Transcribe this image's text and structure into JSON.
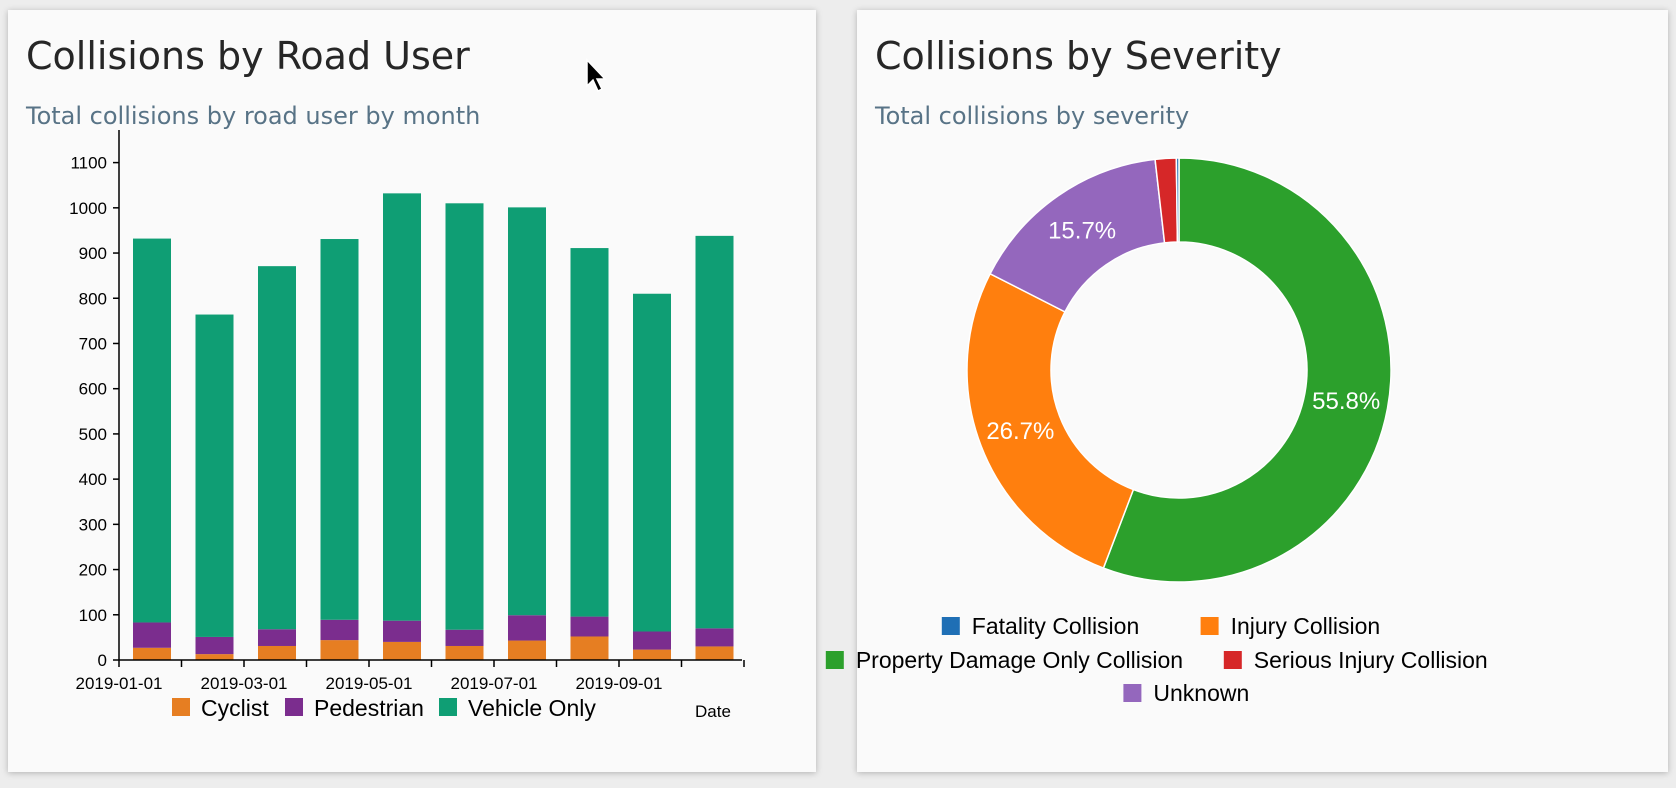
{
  "road_user_card": {
    "title": "Collisions by Road User",
    "subtitle": "Total collisions by road user by month"
  },
  "severity_card": {
    "title": "Collisions by Severity",
    "subtitle": "Total collisions by severity"
  },
  "chart_data": [
    {
      "type": "bar",
      "stacked": true,
      "xlabel": "Date",
      "ylabel": "",
      "ylim": [
        0,
        1150
      ],
      "yticks": [
        0,
        100,
        200,
        300,
        400,
        500,
        600,
        700,
        800,
        900,
        1000,
        1100
      ],
      "categories": [
        "2019-01",
        "2019-02",
        "2019-03",
        "2019-04",
        "2019-05",
        "2019-06",
        "2019-07",
        "2019-08",
        "2019-09",
        "2019-10"
      ],
      "x_tick_labels": [
        "2019-01-01",
        "2019-03-01",
        "2019-05-01",
        "2019-07-01",
        "2019-09-01"
      ],
      "series": [
        {
          "name": "Cyclist",
          "color": "#e67e22",
          "values": [
            27,
            13,
            31,
            44,
            40,
            31,
            43,
            52,
            23,
            30
          ]
        },
        {
          "name": "Pedestrian",
          "color": "#7b2d8e",
          "values": [
            56,
            38,
            37,
            45,
            47,
            36,
            56,
            44,
            40,
            40
          ]
        },
        {
          "name": "Vehicle Only",
          "color": "#0f9e74",
          "values": [
            849,
            713,
            803,
            842,
            945,
            943,
            902,
            815,
            747,
            868
          ]
        }
      ],
      "legend": "bottom",
      "grid": false
    },
    {
      "type": "pie",
      "donut": true,
      "slices": [
        {
          "label": "Fatality Collision",
          "value": 0.2,
          "color": "#1f6fb5",
          "display": ""
        },
        {
          "label": "Injury Collision",
          "value": 26.7,
          "color": "#ff7f0e",
          "display": "26.7%"
        },
        {
          "label": "Property Damage Only Collision",
          "value": 55.8,
          "color": "#2ca02c",
          "display": "55.8%"
        },
        {
          "label": "Serious Injury Collision",
          "value": 1.6,
          "color": "#d62728",
          "display": ""
        },
        {
          "label": "Unknown",
          "value": 15.7,
          "color": "#9467bd",
          "display": "15.7%"
        }
      ],
      "legend": "bottom"
    }
  ]
}
